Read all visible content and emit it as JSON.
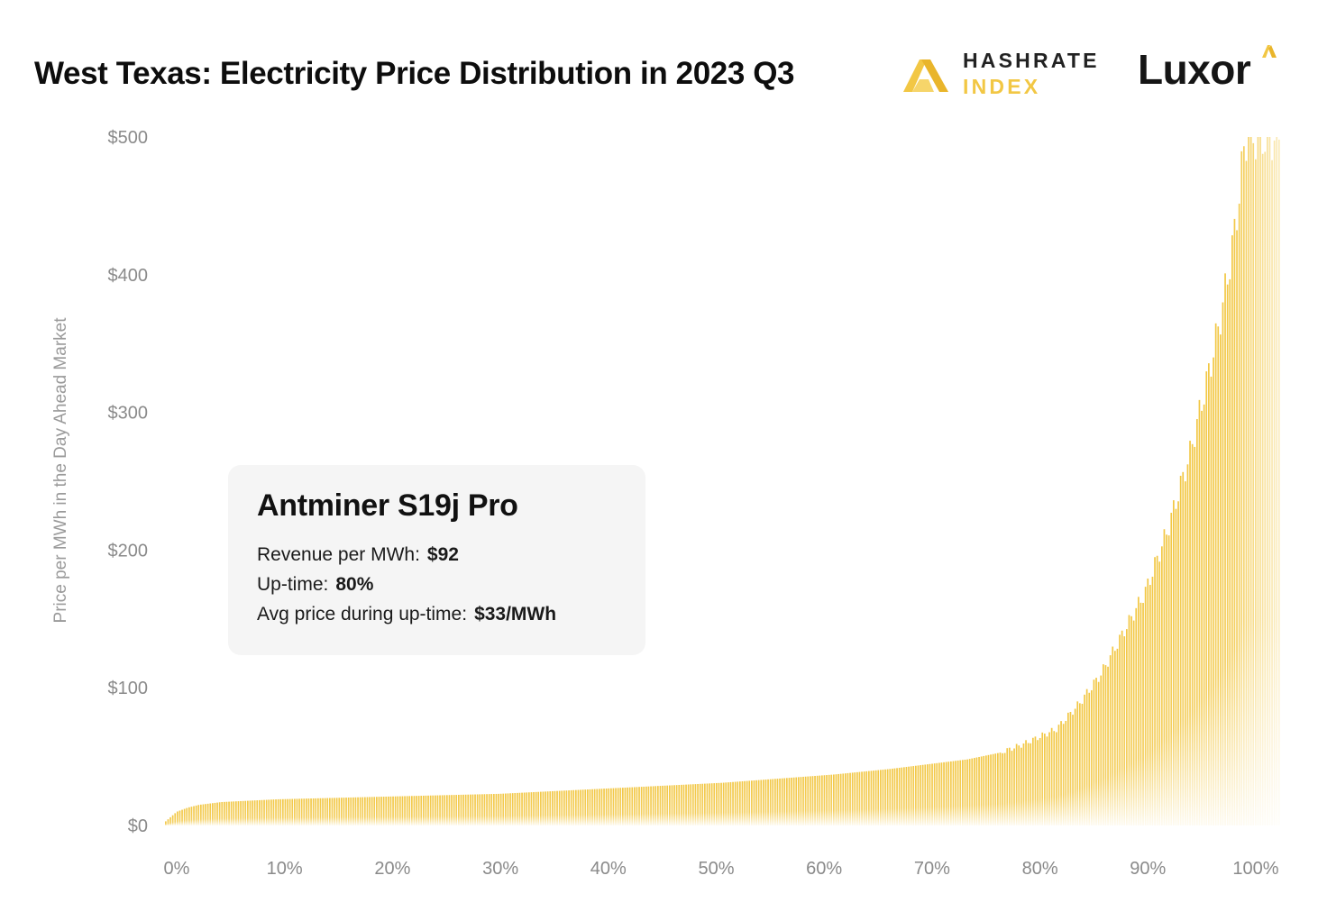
{
  "header": {
    "title": "West Texas: Electricity Price Distribution in 2023 Q3"
  },
  "logos": {
    "hashrate_line1": "HASHRATE",
    "hashrate_line2": "INDEX",
    "luxor": "Luxor",
    "hashrate_icon": "hashrate-index-logo-icon",
    "luxor_icon": "luxor-triangle-icon"
  },
  "info_card": {
    "title": "Antminer S19j Pro",
    "rows": [
      {
        "label": "Revenue per MWh:",
        "value": "$92"
      },
      {
        "label": "Up-time:",
        "value": "80%"
      },
      {
        "label": "Avg price during up-time:",
        "value": "$33/MWh"
      }
    ]
  },
  "colors": {
    "bar": "#f2c744",
    "card_background": "#f5f5f5",
    "tick_text": "#8a8a8a"
  },
  "chart_data": {
    "type": "bar",
    "title": "West Texas: Electricity Price Distribution in 2023 Q3",
    "xlabel": "",
    "ylabel": "Price per MWh in the Day Ahead Market",
    "xlim": [
      0,
      100
    ],
    "ylim": [
      0,
      500
    ],
    "x_ticks": [
      "0%",
      "10%",
      "20%",
      "30%",
      "40%",
      "50%",
      "60%",
      "70%",
      "80%",
      "90%",
      "100%"
    ],
    "y_ticks": [
      "$0",
      "$100",
      "$200",
      "$300",
      "$400",
      "$500"
    ],
    "grid": false,
    "legend": "none",
    "series": [
      {
        "x": [
          0,
          1,
          2,
          3,
          5,
          10,
          15,
          20,
          25,
          30,
          35,
          40,
          45,
          50,
          55,
          60,
          65,
          70,
          72,
          75,
          77,
          80,
          82,
          84,
          86,
          88,
          90,
          92,
          94,
          95,
          96,
          97,
          98,
          100
        ],
        "values": [
          3,
          10,
          13,
          15,
          17,
          19,
          20,
          21,
          22,
          23,
          25,
          27,
          29,
          31,
          34,
          37,
          41,
          46,
          48,
          53,
          59,
          70,
          88,
          110,
          140,
          170,
          215,
          270,
          340,
          380,
          430,
          500,
          500,
          500
        ]
      }
    ],
    "annotations": [
      "Antminer S19j Pro",
      "Revenue per MWh: $92",
      "Up-time: 80%",
      "Avg price during up-time: $33/MWh"
    ]
  }
}
